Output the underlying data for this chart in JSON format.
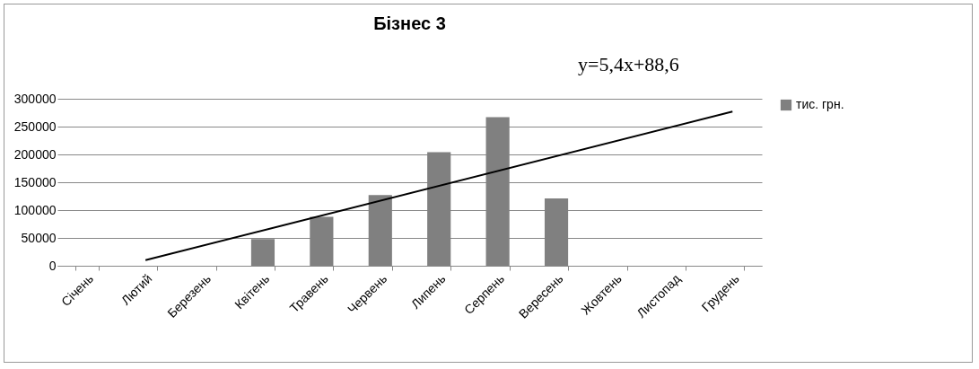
{
  "chart_data": {
    "type": "bar",
    "title": "Бізнес 3",
    "annotations": [
      "y=5,4x+88,6"
    ],
    "categories": [
      "Січень",
      "Лютий",
      "Березень",
      "Квітень",
      "Травень",
      "Червень",
      "Липень",
      "Серпень",
      "Вересень",
      "Жовтень",
      "Листопад",
      "Грудень"
    ],
    "series": [
      {
        "name": "тис. грн.",
        "color": "#808080",
        "values": [
          null,
          null,
          null,
          48000,
          88000,
          127000,
          204000,
          267000,
          121000,
          null,
          null,
          null
        ]
      },
      {
        "type": "line",
        "color": "#000000",
        "x": [
          "Лютий",
          "Грудень"
        ],
        "values": [
          10000,
          277000
        ]
      }
    ],
    "ylim": [
      0,
      300000
    ],
    "yticks": [
      0,
      50000,
      100000,
      150000,
      200000,
      250000,
      300000
    ],
    "grid": "y",
    "legend": "right"
  }
}
